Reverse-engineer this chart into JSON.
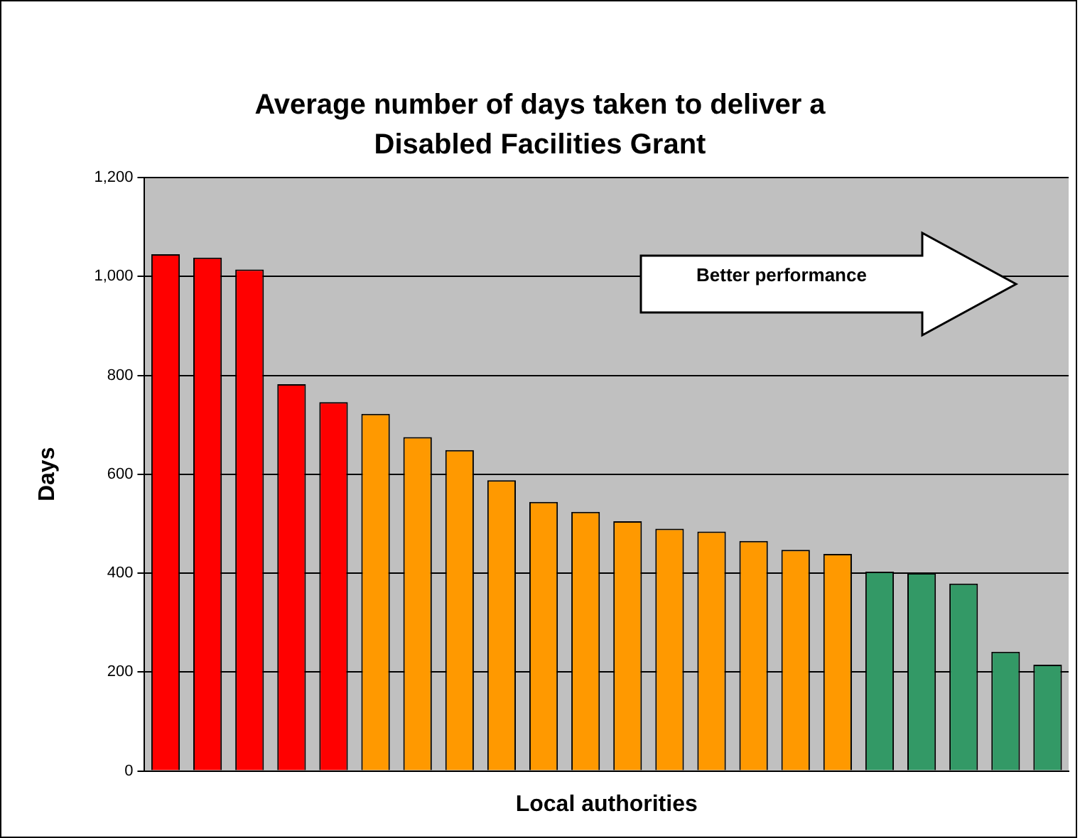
{
  "chart_data": {
    "type": "bar",
    "title": "Average number of days taken to deliver a Disabled Facilities Grant",
    "xlabel": "Local authorities",
    "ylabel": "Days",
    "categories": [
      null,
      null,
      null,
      null,
      null,
      null,
      null,
      null,
      null,
      null,
      null,
      null,
      null,
      null,
      null,
      null,
      null,
      null,
      null,
      null,
      null,
      null
    ],
    "values": [
      1045,
      1038,
      1014,
      782,
      746,
      722,
      675,
      649,
      588,
      544,
      524,
      505,
      490,
      484,
      465,
      447,
      439,
      403,
      400,
      379,
      241,
      215
    ],
    "colors": [
      "#ff0000",
      "#ff0000",
      "#ff0000",
      "#ff0000",
      "#ff0000",
      "#ff9900",
      "#ff9900",
      "#ff9900",
      "#ff9900",
      "#ff9900",
      "#ff9900",
      "#ff9900",
      "#ff9900",
      "#ff9900",
      "#ff9900",
      "#ff9900",
      "#ff9900",
      "#339966",
      "#339966",
      "#339966",
      "#339966",
      "#339966"
    ],
    "ylim": [
      0,
      1200
    ],
    "yticks": [
      0,
      200,
      400,
      600,
      800,
      {
        "value": 1000,
        "label": "1,000"
      },
      {
        "value": 1200,
        "label": "1,200"
      }
    ],
    "grid": "y",
    "legend": false,
    "annotations": [
      "Better performance"
    ]
  }
}
